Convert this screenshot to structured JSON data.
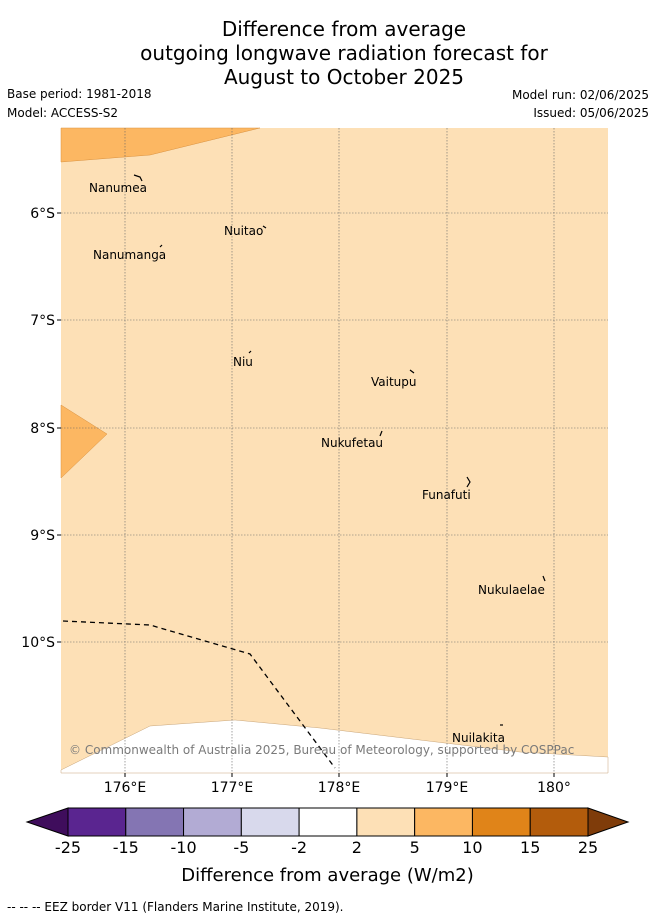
{
  "title_lines": [
    "Difference from average",
    "outgoing longwave radiation forecast for",
    "August to October 2025"
  ],
  "meta": {
    "base_period": "Base period: 1981-2018",
    "model": "Model: ACCESS-S2",
    "model_run": "Model run: 02/06/2025",
    "issued": "Issued: 05/06/2025"
  },
  "map": {
    "lon_ticks": [
      "176°E",
      "177°E",
      "178°E",
      "179°E",
      "180°"
    ],
    "lat_ticks": [
      "6°S",
      "7°S",
      "8°S",
      "9°S",
      "10°S"
    ],
    "places": [
      "Nanumea",
      "Nuitao",
      "Nanumanga",
      "Niu",
      "Vaitupu",
      "Nukufetau",
      "Funafuti",
      "Nukulaelae",
      "Nuilakita"
    ],
    "copyright": "© Commonwealth of Australia 2025, Bureau of Meteorology, supported by COSPPac"
  },
  "colorbar": {
    "ticks": [
      "-25",
      "-15",
      "-10",
      "-5",
      "-2",
      "2",
      "5",
      "10",
      "15",
      "25"
    ],
    "colors": [
      "#3f0d5c",
      "#5a2590",
      "#8475b3",
      "#b2abd4",
      "#d8d9ec",
      "#ffffff",
      "#fde0b6",
      "#fcb762",
      "#e08419",
      "#b35c0c",
      "#7f3c0a"
    ],
    "label": "Difference from average (W/m2)"
  },
  "legend_note": "--  --  -- EEZ border V11 (Flanders Marine Institute, 2019)."
}
